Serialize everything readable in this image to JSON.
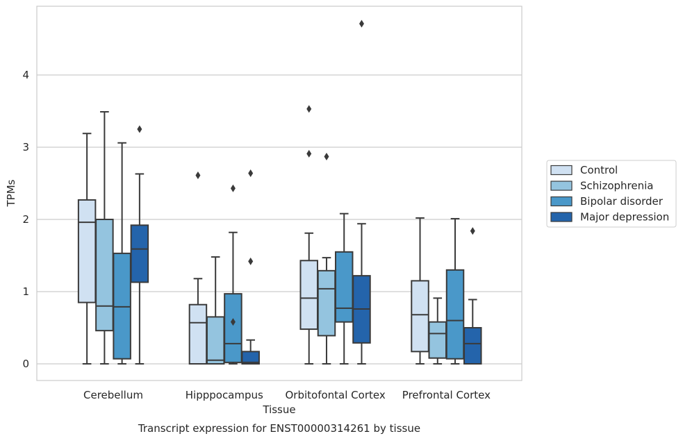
{
  "chart_data": {
    "type": "box",
    "caption": "Transcript expression for ENST00000314261 by tissue",
    "xlabel": "Tissue",
    "ylabel": "TPMs",
    "ylim": [
      -0.23,
      4.95
    ],
    "yticks": [
      0,
      1,
      2,
      3,
      4
    ],
    "grid": "horizontal",
    "legend_position": "right",
    "categories": [
      "Cerebellum",
      "Hipppocampus",
      "Orbitofontal Cortex",
      "Prefrontal Cortex"
    ],
    "series": [
      {
        "name": "Control",
        "color": "#d0e1f2",
        "boxes": [
          {
            "whislo": 0.0,
            "q1": 0.85,
            "med": 1.96,
            "q3": 2.27,
            "whishi": 3.19,
            "fliers": []
          },
          {
            "whislo": 0.0,
            "q1": 0.0,
            "med": 0.57,
            "q3": 0.82,
            "whishi": 1.18,
            "fliers": [
              2.61
            ]
          },
          {
            "whislo": 0.0,
            "q1": 0.48,
            "med": 0.91,
            "q3": 1.43,
            "whishi": 1.81,
            "fliers": [
              3.53,
              2.91
            ]
          },
          {
            "whislo": 0.0,
            "q1": 0.17,
            "med": 0.68,
            "q3": 1.15,
            "whishi": 2.02,
            "fliers": []
          }
        ]
      },
      {
        "name": "Schizophrenia",
        "color": "#94c4df",
        "boxes": [
          {
            "whislo": 0.0,
            "q1": 0.46,
            "med": 0.8,
            "q3": 2.0,
            "whishi": 3.49,
            "fliers": []
          },
          {
            "whislo": 0.0,
            "q1": 0.0,
            "med": 0.05,
            "q3": 0.65,
            "whishi": 1.48,
            "fliers": []
          },
          {
            "whislo": 0.0,
            "q1": 0.39,
            "med": 1.04,
            "q3": 1.29,
            "whishi": 1.47,
            "fliers": [
              2.87
            ]
          },
          {
            "whislo": 0.0,
            "q1": 0.08,
            "med": 0.42,
            "q3": 0.58,
            "whishi": 0.91,
            "fliers": []
          }
        ]
      },
      {
        "name": "Bipolar disorder",
        "color": "#4a98c9",
        "boxes": [
          {
            "whislo": 0.0,
            "q1": 0.07,
            "med": 0.79,
            "q3": 1.53,
            "whishi": 3.06,
            "fliers": []
          },
          {
            "whislo": 0.0,
            "q1": 0.02,
            "med": 0.28,
            "q3": 0.97,
            "whishi": 1.82,
            "fliers": [
              2.43,
              0.58
            ]
          },
          {
            "whislo": 0.0,
            "q1": 0.58,
            "med": 0.77,
            "q3": 1.55,
            "whishi": 2.08,
            "fliers": []
          },
          {
            "whislo": 0.0,
            "q1": 0.07,
            "med": 0.6,
            "q3": 1.3,
            "whishi": 2.01,
            "fliers": []
          }
        ]
      },
      {
        "name": "Major depression",
        "color": "#2464ab",
        "boxes": [
          {
            "whislo": 0.0,
            "q1": 1.13,
            "med": 1.59,
            "q3": 1.92,
            "whishi": 2.63,
            "fliers": [
              3.25
            ]
          },
          {
            "whislo": 0.0,
            "q1": 0.0,
            "med": 0.02,
            "q3": 0.17,
            "whishi": 0.33,
            "fliers": [
              2.64,
              1.42
            ]
          },
          {
            "whislo": 0.0,
            "q1": 0.29,
            "med": 0.76,
            "q3": 1.22,
            "whishi": 1.94,
            "fliers": [
              4.71
            ]
          },
          {
            "whislo": 0.0,
            "q1": 0.0,
            "med": 0.28,
            "q3": 0.5,
            "whishi": 0.89,
            "fliers": [
              1.84
            ]
          }
        ]
      }
    ]
  }
}
